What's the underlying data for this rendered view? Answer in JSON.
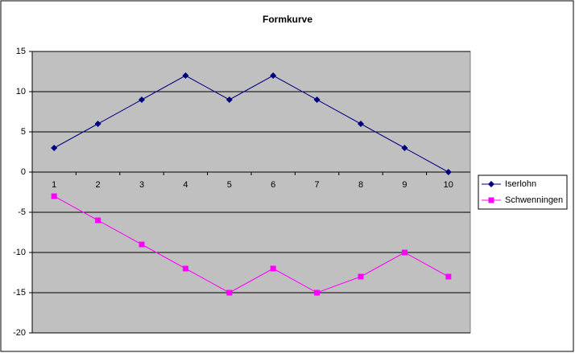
{
  "chart_data": {
    "type": "line",
    "title": "Formkurve",
    "categories": [
      "1",
      "2",
      "3",
      "4",
      "5",
      "6",
      "7",
      "8",
      "9",
      "10"
    ],
    "series": [
      {
        "name": "Iserlohn",
        "color": "#000080",
        "marker": "diamond",
        "values": [
          3,
          6,
          9,
          12,
          9,
          12,
          9,
          6,
          3,
          0
        ]
      },
      {
        "name": "Schwenningen",
        "color": "#ff00ff",
        "marker": "square",
        "values": [
          -3,
          -6,
          -9,
          -12,
          -15,
          -12,
          -15,
          -13,
          -10,
          -13
        ]
      }
    ],
    "ylim": [
      -20,
      15
    ],
    "yticks": [
      -20,
      -15,
      -10,
      -5,
      0,
      5,
      10,
      15
    ],
    "grid": true,
    "legend": "right"
  }
}
